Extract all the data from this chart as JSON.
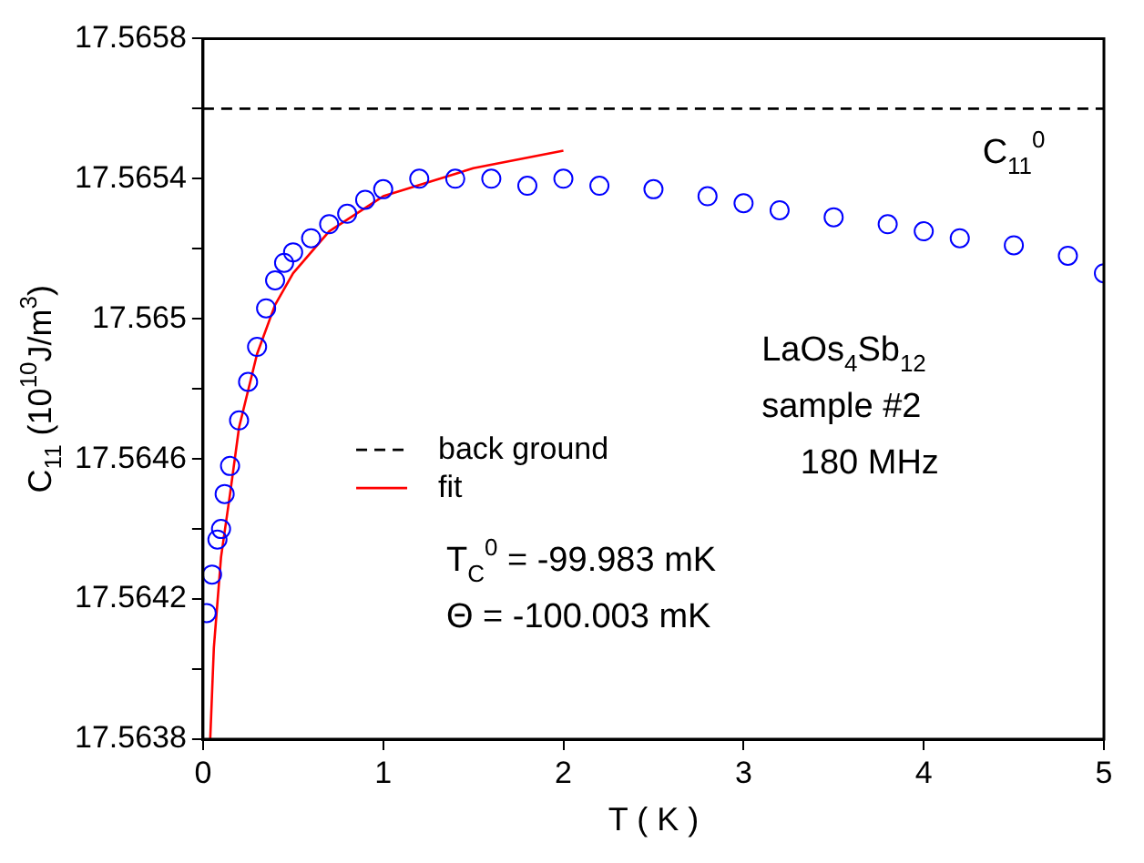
{
  "chart_data": {
    "type": "scatter",
    "xlabel": "T ( K )",
    "ylabel": "C$_{11}$ (10$^{10}$J/m$^{3}$)",
    "xlim": [
      0,
      5
    ],
    "xticks": [
      0,
      1,
      2,
      3,
      4,
      5
    ],
    "ylim": [
      17.5638,
      17.5658
    ],
    "yticks": [
      17.5638,
      {
        "value": 17.564,
        "label": null
      },
      17.5642,
      {
        "value": 17.5644,
        "label": null
      },
      17.5646,
      {
        "value": 17.5648,
        "label": null
      },
      17.565,
      {
        "value": 17.5652,
        "label": null
      },
      17.5654,
      {
        "value": 17.5656,
        "label": null
      },
      17.5658
    ],
    "grid": false,
    "legend": "bottom",
    "series": [
      {
        "type": "scatter",
        "marker": "circle",
        "color": "#0000ff",
        "x": [
          0.02,
          0.05,
          0.08,
          0.1,
          0.12,
          0.15,
          0.2,
          0.25,
          0.3,
          0.35,
          0.4,
          0.45,
          0.5,
          0.6,
          0.7,
          0.8,
          0.9,
          1.0,
          1.2,
          1.4,
          1.6,
          1.8,
          2.0,
          2.2,
          2.5,
          2.8,
          3.0,
          3.2,
          3.5,
          3.8,
          4.0,
          4.2,
          4.5,
          4.8,
          5.0
        ],
        "values": [
          17.56416,
          17.56427,
          17.56437,
          17.5644,
          17.5645,
          17.56458,
          17.56471,
          17.56482,
          17.56492,
          17.56503,
          17.56511,
          17.56516,
          17.56519,
          17.56523,
          17.56527,
          17.5653,
          17.56534,
          17.56537,
          17.5654,
          17.5654,
          17.5654,
          17.56538,
          17.5654,
          17.56538,
          17.56537,
          17.56535,
          17.56533,
          17.56531,
          17.56529,
          17.56527,
          17.56525,
          17.56523,
          17.56521,
          17.56518,
          17.56513
        ]
      },
      {
        "type": "line",
        "name": "back ground",
        "color": "#000000",
        "line_style": "dashed",
        "x": [
          0,
          5
        ],
        "values": [
          17.5656,
          17.5656
        ]
      },
      {
        "type": "line",
        "name": "fit",
        "color": "#ff0000",
        "line_style": "solid",
        "x": [
          0.04,
          0.06,
          0.1,
          0.15,
          0.2,
          0.3,
          0.4,
          0.5,
          0.7,
          1.0,
          1.5,
          2.0
        ],
        "values": [
          17.5638,
          17.56406,
          17.56432,
          17.5645,
          17.56469,
          17.5649,
          17.56504,
          17.56513,
          17.56525,
          17.56535,
          17.56543,
          17.56548
        ]
      }
    ],
    "annotations": [
      "LaOs$_{4}$Sb$_{12}$",
      "sample #2",
      "180 MHz",
      "T$_{C}$$^{0}$ = -99.983 mK",
      "Θ = -100.003 mK",
      {
        "text": "C$_{11}$$^{0}$",
        "x": 4.5,
        "y": 17.5656
      }
    ]
  }
}
